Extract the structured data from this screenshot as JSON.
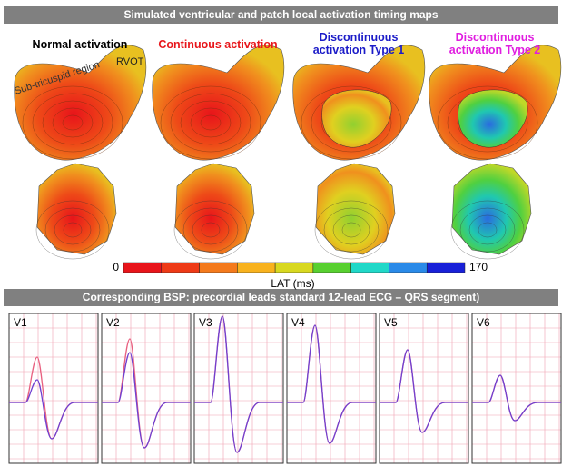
{
  "header": {
    "title": "Simulated ventricular and patch local activation timing maps"
  },
  "columns": [
    {
      "label": "Normal activation",
      "color": "#000000"
    },
    {
      "label": "Continuous activation",
      "color": "#e8161b"
    },
    {
      "label": "Discontinuous activation Type 1",
      "color": "#1b1bc8"
    },
    {
      "label": "Discontinuous activation Type 2",
      "color": "#e01ee0"
    }
  ],
  "annotations": [
    "Sub-tricuspid region",
    "RVOT"
  ],
  "colorbar": {
    "min": 0,
    "max": 170,
    "label": "LAT (ms)",
    "colors": [
      "#e8141a",
      "#ee3a16",
      "#f47a1c",
      "#f8b21e",
      "#d8d820",
      "#58d030",
      "#20d8c8",
      "#2a8ae8",
      "#1820d8"
    ]
  },
  "section2": {
    "title": "Corresponding BSP: precordial leads standard 12-lead ECG – QRS segment)"
  },
  "leads": [
    "V1",
    "V2",
    "V3",
    "V4",
    "V5",
    "V6"
  ]
}
